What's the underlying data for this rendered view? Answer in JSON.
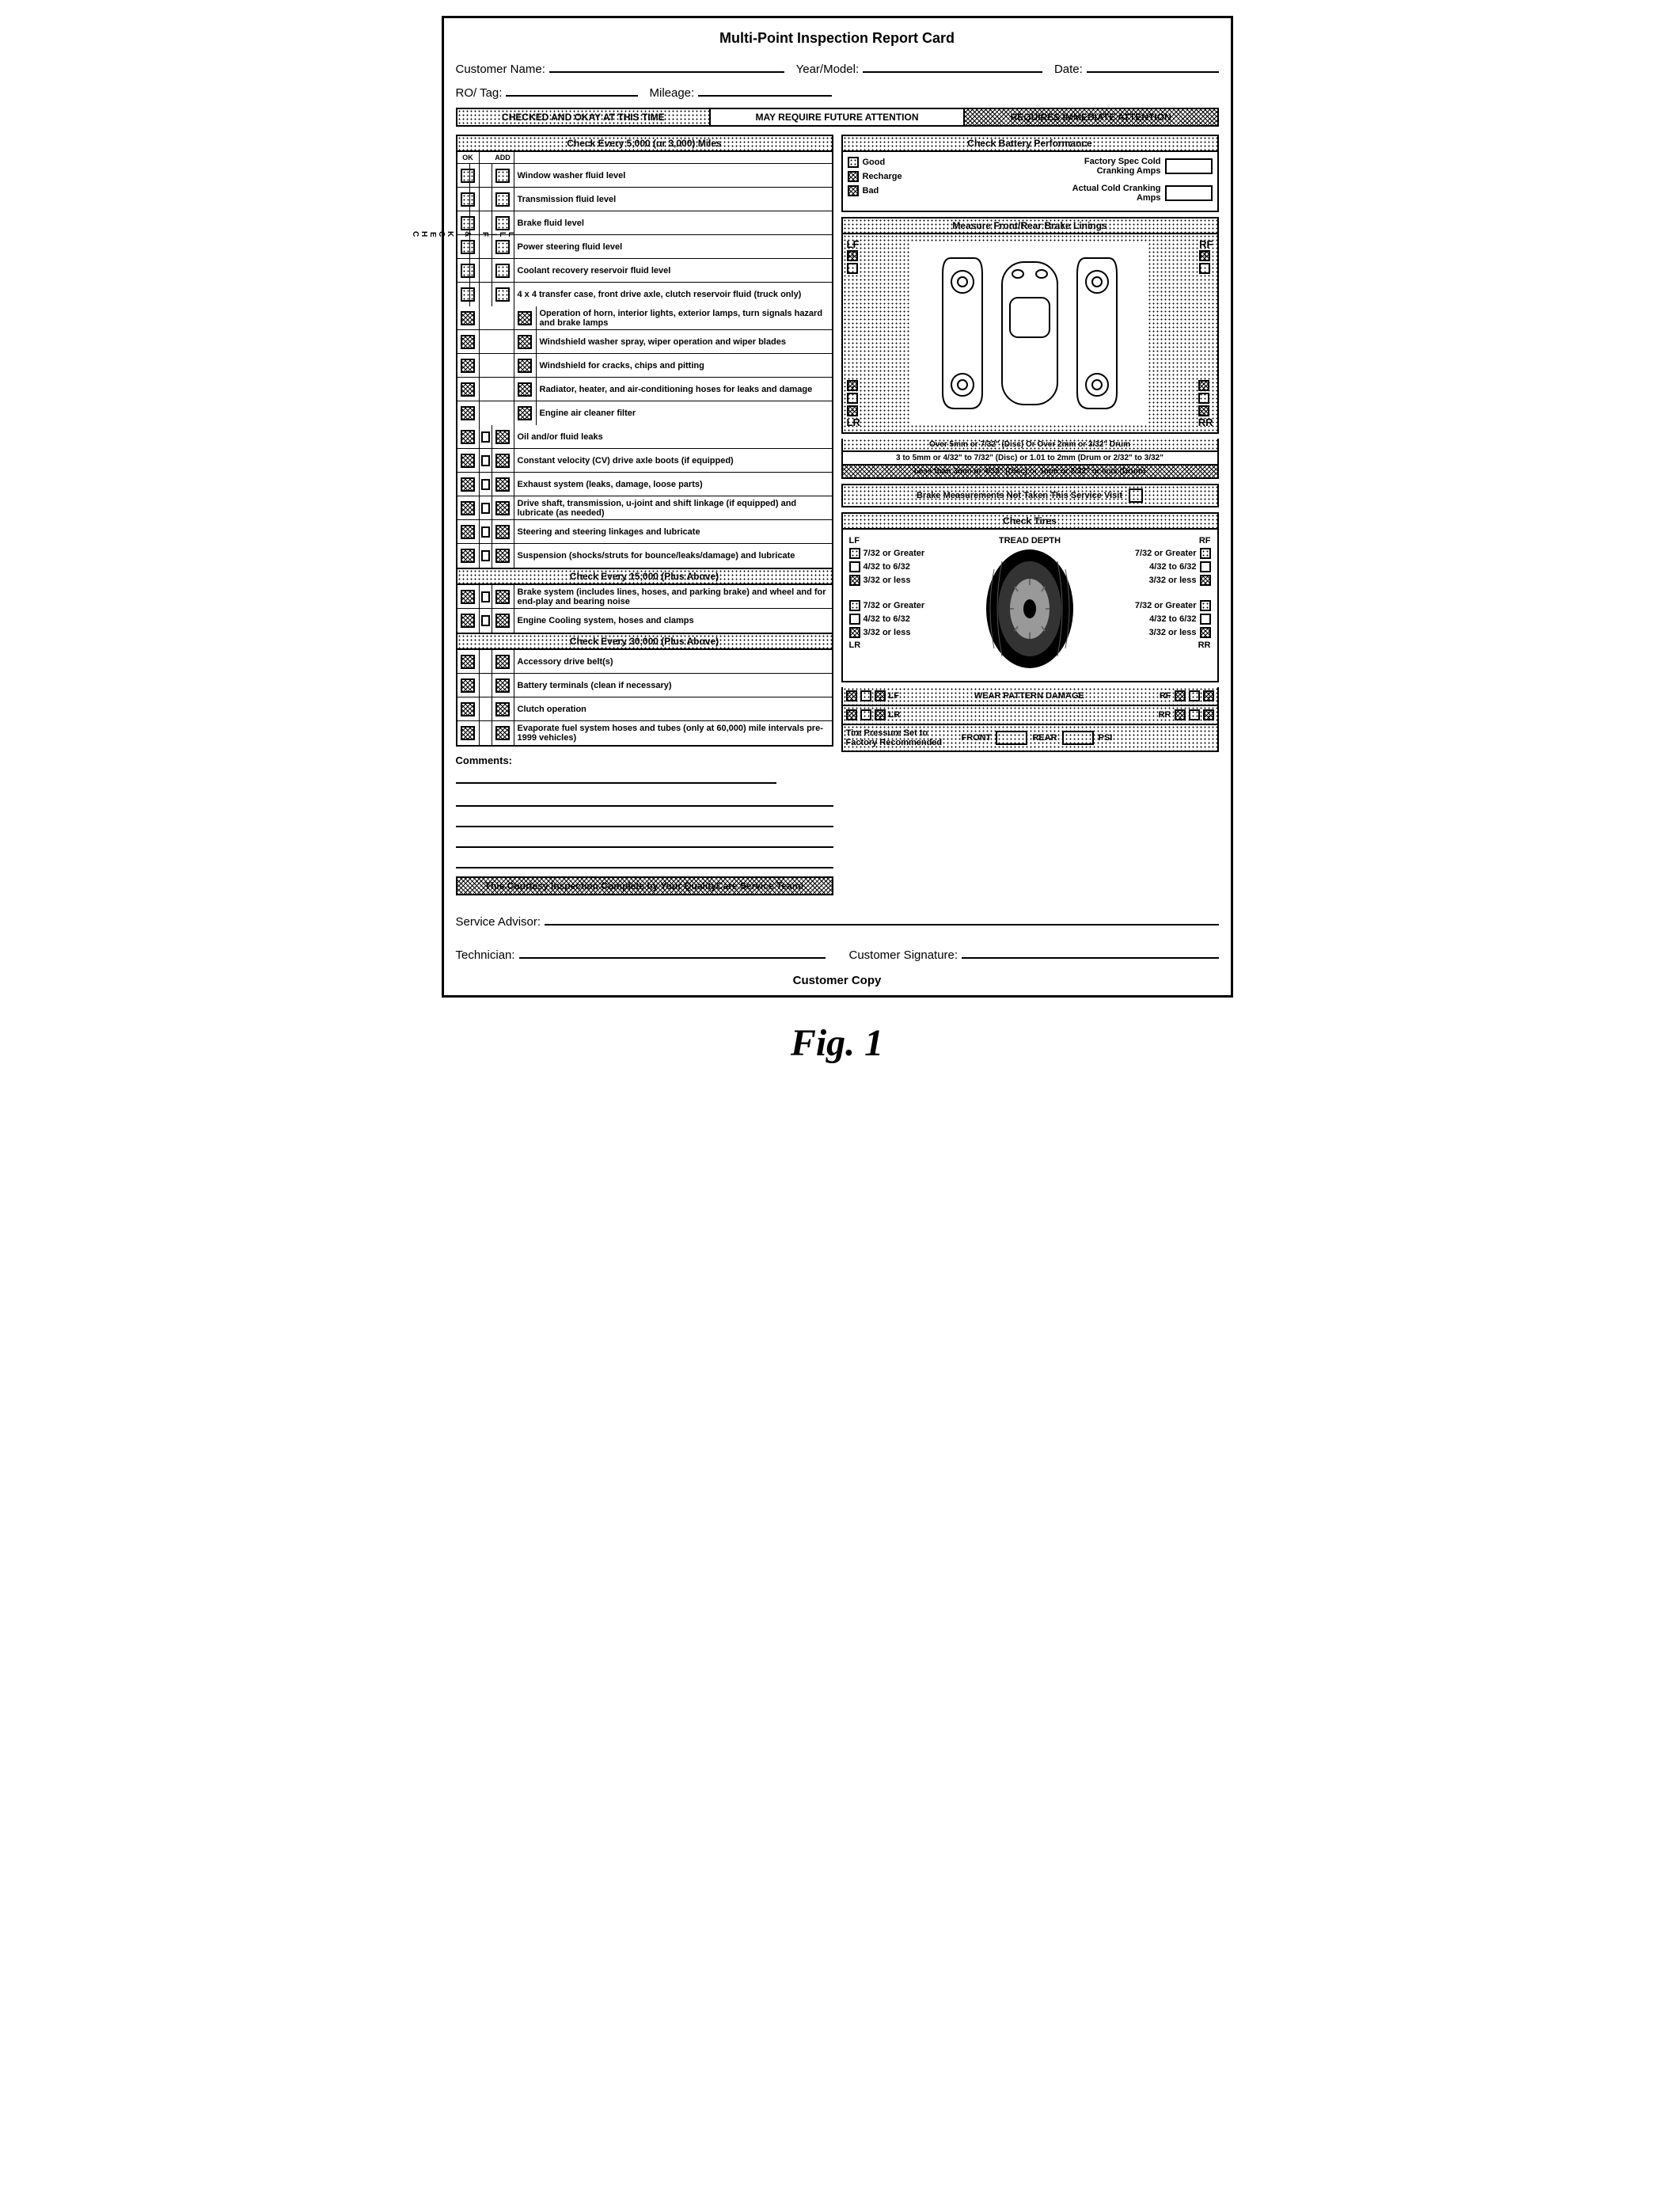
{
  "title": "Multi-Point Inspection Report Card",
  "fields": {
    "customer_name": "Customer Name:",
    "year_model": "Year/Model:",
    "date": "Date:",
    "ro_tag": "RO/ Tag:",
    "mileage": "Mileage:"
  },
  "status": {
    "ok": "CHECKED AND OKAY AT THIS TIME",
    "future": "MAY REQUIRE FUTURE ATTENTION",
    "immediate": "REQUIRES IMMEDIATE ATTENTION"
  },
  "sections": {
    "every_5000": "Check Every 5,000 (or 3,000) Miles",
    "every_15000": "Check Every 15,000 (Plus Above)",
    "every_30000": "Check Every 30,000 (Plus Above)",
    "battery": "Check Battery Performance",
    "brake_linings": "Measure Front/Rear Brake Linings",
    "tires": "Check Tires"
  },
  "col_headers": {
    "ok": "OK",
    "add": "ADD"
  },
  "vlabels": {
    "check_fill": "CHECK & FILL"
  },
  "items_5000_fill": [
    "Window washer fluid level",
    "Transmission fluid level",
    "Brake fluid level",
    "Power steering fluid level",
    "Coolant recovery reservoir fluid level",
    "4 x 4 transfer case, front drive axle, clutch reservoir fluid (truck only)"
  ],
  "items_5000_two": [
    "Operation of horn, interior lights, exterior lamps, turn signals hazard and brake lamps",
    "Windshield washer spray, wiper operation and wiper blades",
    "Windshield for cracks, chips and pitting",
    "Radiator, heater, and air-conditioning hoses for leaks and damage",
    "Engine air cleaner filter"
  ],
  "items_5000_three": [
    "Oil and/or fluid leaks",
    "Constant velocity (CV) drive axle boots (if equipped)",
    "Exhaust system (leaks, damage, loose parts)",
    "Drive shaft, transmission, u-joint and shift linkage (if equipped) and lubricate (as needed)",
    "Steering and steering linkages and lubricate",
    "Suspension (shocks/struts for bounce/leaks/damage) and lubricate"
  ],
  "items_15000": [
    "Brake system (includes lines, hoses, and parking brake) and wheel and for end-play and bearing noise",
    "Engine Cooling system, hoses and clamps"
  ],
  "items_30000": [
    "Accessory drive belt(s)",
    "Battery terminals (clean if necessary)",
    "Clutch operation",
    "Evaporate fuel system hoses and tubes (only at 60,000) mile intervals pre-1999 vehicles)"
  ],
  "battery": {
    "good": "Good",
    "recharge": "Recharge",
    "bad": "Bad",
    "factory": "Factory Spec Cold Cranking Amps",
    "actual": "Actual Cold Cranking Amps"
  },
  "brake_corners": {
    "lf": "LF",
    "rf": "RF",
    "lr": "LR",
    "rr": "RR"
  },
  "brake_measures": {
    "over": "Over 5mm or 7/32\" (Disc) Or Over 2mm or 3/32\" Drum",
    "mid": "3 to 5mm or 4/32\" to 7/32\" (Disc) or 1.01 to 2mm (Drum or 2/32\" to 3/32\"",
    "less": "Less than 3mm or 4/32\" (Disc) or 1mm or 2/32\" or less (Drum)",
    "not_taken": "Brake Measurements Not Taken This Service Visit"
  },
  "tires_labels": {
    "tread_depth": "TREAD DEPTH",
    "t1": "7/32 or Greater",
    "t2": "4/32 to 6/32",
    "t3": "3/32 or less",
    "wear": "WEAR PATTERN DAMAGE",
    "pressure": "Tire Pressure Set to Factory Recommended",
    "front": "FRONT",
    "rear": "REAR",
    "psi": "PSI"
  },
  "comments_label": "Comments:",
  "courtesy": "This Courtesy Inspection Complete by Your QualityCare Service Team!",
  "signatures": {
    "advisor": "Service Advisor:",
    "technician": "Technician:",
    "customer": "Customer Signature:"
  },
  "copy": "Customer Copy",
  "figure": "Fig. 1"
}
